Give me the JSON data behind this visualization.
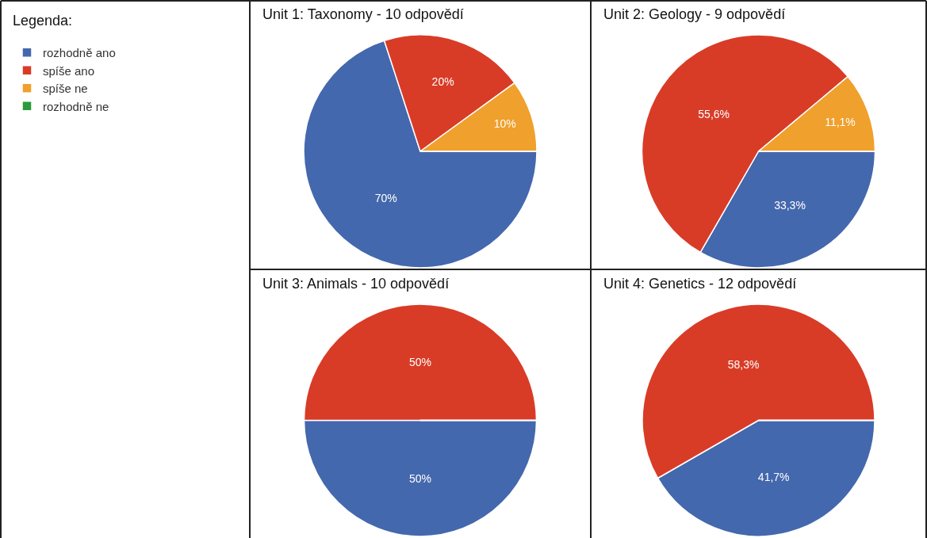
{
  "chart_data": [
    {
      "type": "pie",
      "title": "Unit 1: Taxonomy - 10 odpovědí",
      "legend_title": "Legenda:",
      "legend": "top left",
      "categories": [
        "rozhodně ano",
        "spíše ano",
        "spíše ne",
        "rozhodně ne"
      ],
      "values": [
        70,
        20,
        10,
        0
      ],
      "value_labels": [
        "70%",
        "20%",
        "10%",
        null
      ],
      "colors": [
        "#4468ad",
        "#d83c27",
        "#f0a02c",
        "#2a9a3a"
      ]
    },
    {
      "type": "pie",
      "title": "Unit 2: Geology - 9 odpovědí",
      "categories": [
        null,
        null,
        null,
        null
      ],
      "values": [
        33.3,
        55.6,
        11.1,
        0
      ],
      "value_labels": [
        "33,3%",
        "55,6%",
        "11,1%",
        null
      ],
      "colors": [
        "#4468ad",
        "#d83c27",
        "#f0a02c",
        "#2a9a3a"
      ]
    },
    {
      "type": "pie",
      "title": "Unit 3: Animals - 10 odpovědí",
      "categories": [
        null,
        null,
        null,
        null
      ],
      "values": [
        50,
        50,
        0,
        0
      ],
      "value_labels": [
        "50%",
        "50%",
        null,
        null
      ],
      "colors": [
        "#4468ad",
        "#d83c27",
        "#f0a02c",
        "#2a9a3a"
      ]
    },
    {
      "type": "pie",
      "title": "Unit 4: Genetics - 12 odpovědí",
      "categories": [
        null,
        null,
        null,
        null
      ],
      "values": [
        41.7,
        58.3,
        0,
        0
      ],
      "value_labels": [
        "41,7%",
        "58,3%",
        null,
        null
      ],
      "colors": [
        "#4468ad",
        "#d83c27",
        "#f0a02c",
        "#2a9a3a"
      ]
    }
  ]
}
